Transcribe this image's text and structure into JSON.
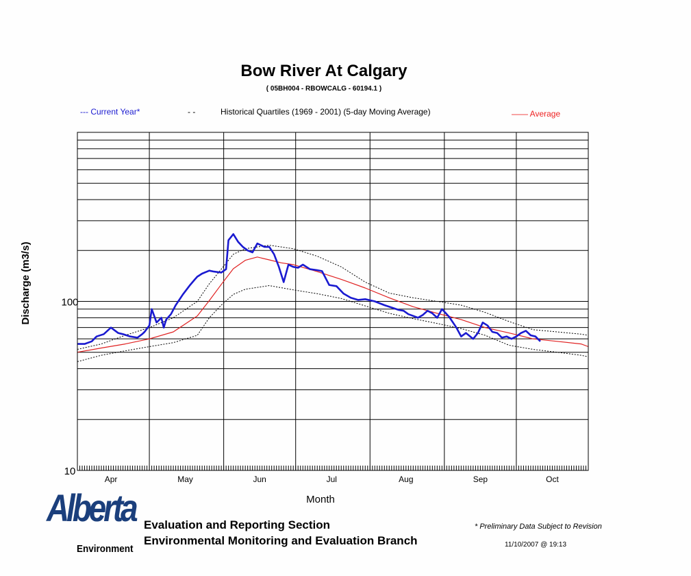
{
  "header": {
    "title": "Bow River At Calgary",
    "subtitle": "( 05BH004 - RBOWCALG - 60194.1 )"
  },
  "legend": {
    "current": "--- Current Year*",
    "quartiles_marker": "- -",
    "quartiles": "Historical Quartiles (1969  -  2001)  (5-day Moving Average)",
    "average": "—— Average"
  },
  "footer": {
    "section": "Evaluation and Reporting Section",
    "branch": "Environmental Monitoring and Evaluation Branch",
    "note": "* Preliminary Data Subject to Revision",
    "timestamp": "11/10/2007 @ 19:13"
  },
  "logo": {
    "word": "Alberta",
    "sub": "Environment",
    "color": "#1b3f7c"
  },
  "chart_data": {
    "type": "line",
    "scale": "log",
    "xlabel": "Month",
    "ylabel": "Discharge (m3/s)",
    "ylim": [
      10,
      1000
    ],
    "xlim_days": [
      0,
      213
    ],
    "y_tick_labels": [
      {
        "value": 10,
        "label": "10"
      },
      {
        "value": 100,
        "label": "100"
      }
    ],
    "month_ticks": [
      {
        "label": "Apr",
        "day": 0
      },
      {
        "label": "May",
        "day": 30
      },
      {
        "label": "Jun",
        "day": 61
      },
      {
        "label": "Jul",
        "day": 91
      },
      {
        "label": "Aug",
        "day": 122
      },
      {
        "label": "Sep",
        "day": 153
      },
      {
        "label": "Oct",
        "day": 183
      }
    ],
    "month_label_days": [
      14,
      45,
      76,
      106,
      137,
      168,
      198
    ],
    "colors": {
      "current": "#1a1ad0",
      "quartile": "#000000",
      "average": "#e02020"
    },
    "series": [
      {
        "name": "Current Year*",
        "x": [
          0,
          3,
          6,
          8,
          11,
          14,
          17,
          19,
          22,
          25,
          27,
          28,
          30,
          31,
          33,
          35,
          36,
          37,
          39,
          41,
          44,
          47,
          49,
          50,
          52,
          55,
          57,
          60,
          62,
          63,
          65,
          67,
          69,
          71,
          73,
          75,
          78,
          80,
          82,
          84,
          86,
          88,
          90,
          92,
          94,
          97,
          100,
          102,
          105,
          108,
          111,
          114,
          117,
          120,
          124,
          128,
          132,
          134,
          136,
          138,
          140,
          142,
          144,
          146,
          148,
          150,
          152,
          155,
          158,
          160,
          162,
          165,
          167,
          169,
          171,
          173,
          175,
          177,
          179,
          181,
          183,
          185,
          187,
          189,
          191,
          193
        ],
        "y": [
          56,
          56,
          58,
          62,
          64,
          70,
          65,
          64,
          62,
          61,
          64,
          66,
          72,
          90,
          75,
          80,
          70,
          78,
          84,
          95,
          110,
          125,
          135,
          140,
          146,
          152,
          150,
          148,
          155,
          230,
          250,
          225,
          210,
          200,
          195,
          220,
          210,
          210,
          190,
          160,
          130,
          165,
          160,
          158,
          165,
          155,
          153,
          151,
          125,
          123,
          111,
          105,
          102,
          103,
          100,
          95,
          91,
          89,
          88,
          84,
          82,
          80,
          83,
          88,
          85,
          80,
          90,
          81,
          70,
          62,
          65,
          60,
          65,
          75,
          72,
          66,
          65,
          61,
          62,
          60,
          62,
          65,
          67,
          63,
          62,
          58
        ]
      },
      {
        "name": "Average",
        "x": [
          0,
          10,
          20,
          30,
          40,
          50,
          55,
          60,
          65,
          70,
          75,
          80,
          85,
          90,
          100,
          110,
          120,
          130,
          140,
          150,
          160,
          170,
          180,
          190,
          200,
          210,
          213
        ],
        "y": [
          50,
          53,
          56,
          60,
          66,
          82,
          101,
          126,
          156,
          175,
          183,
          176,
          169,
          165,
          150,
          135,
          120,
          105,
          93,
          85,
          78,
          70,
          65,
          60,
          58,
          56,
          54
        ]
      },
      {
        "name": "Upper quartile",
        "x": [
          0,
          10,
          20,
          30,
          40,
          50,
          55,
          60,
          65,
          70,
          80,
          90,
          100,
          110,
          120,
          130,
          140,
          150,
          160,
          170,
          180,
          190,
          200,
          210,
          213
        ],
        "y": [
          52,
          56,
          63,
          70,
          80,
          100,
          127,
          155,
          190,
          205,
          215,
          205,
          185,
          160,
          130,
          112,
          105,
          100,
          95,
          86,
          76,
          68,
          66,
          64,
          63
        ]
      },
      {
        "name": "Lower quartile",
        "x": [
          0,
          10,
          20,
          30,
          40,
          50,
          55,
          60,
          65,
          70,
          80,
          90,
          100,
          110,
          120,
          130,
          140,
          150,
          160,
          170,
          180,
          190,
          200,
          210,
          213
        ],
        "y": [
          44,
          48,
          51,
          54,
          57,
          63,
          80,
          95,
          110,
          118,
          124,
          117,
          111,
          104,
          94,
          85,
          79,
          74,
          69,
          63,
          55,
          52,
          50,
          48,
          47
        ]
      }
    ]
  }
}
